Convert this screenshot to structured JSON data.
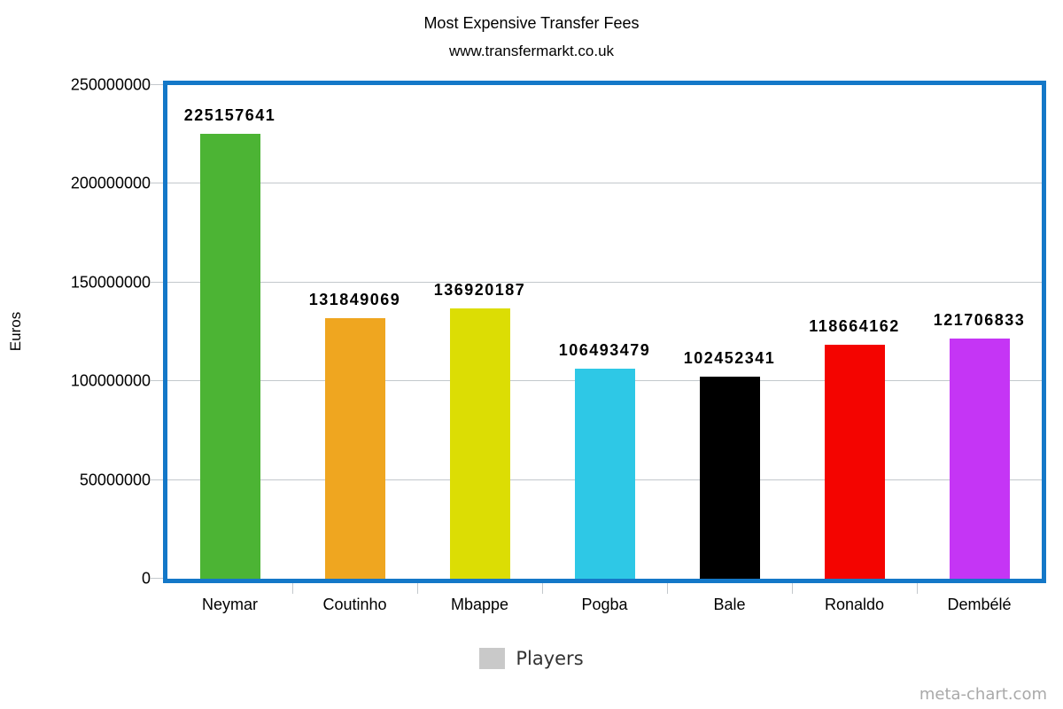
{
  "header": {
    "title": "Most Expensive Transfer Fees",
    "subtitle": "www.transfermarkt.co.uk"
  },
  "chart_data": {
    "type": "bar",
    "title": "Most Expensive Transfer Fees",
    "subtitle": "www.transfermarkt.co.uk",
    "categories": [
      "Neymar",
      "Coutinho",
      "Mbappe",
      "Pogba",
      "Bale",
      "Ronaldo",
      "Dembélé"
    ],
    "values": [
      225157641,
      131849069,
      136920187,
      106493479,
      102452341,
      118664162,
      121706833
    ],
    "bar_colors": [
      "#4CB434",
      "#EFA620",
      "#DCDD04",
      "#2EC8E6",
      "#000000",
      "#F40400",
      "#C535F5"
    ],
    "xlabel": "Players",
    "ylabel": "Euros",
    "ylim": [
      0,
      250000000
    ],
    "ytick_interval": 50000000,
    "ytick_labels": [
      "0",
      "50000000",
      "100000000",
      "150000000",
      "200000000",
      "250000000"
    ],
    "grid": true,
    "legend": {
      "label": "Players",
      "swatch_color": "#c9c9c9",
      "position": "bottom-center"
    },
    "plot_border_color": "#1478C8",
    "gridline_color": "#c3c8cc"
  },
  "watermark": "meta-chart.com"
}
